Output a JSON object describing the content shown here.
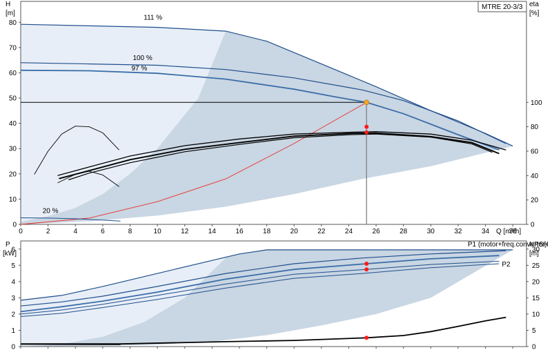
{
  "model": "MTRE 20-3/3",
  "colors": {
    "curve_dark": "#1f4e8c",
    "curve_mid": "#3a6da8",
    "area_dark": "#c9d6e3",
    "area_light": "#e7eef7",
    "system_curve": "#e8302a",
    "marker_red": "#ff1a1a",
    "marker_orange": "#f5a623",
    "black": "#000000"
  },
  "chart_data": [
    {
      "type": "line",
      "name": "head-efficiency",
      "xlabel": "Q [m³/h]",
      "ylabel_left": "H\n[m]",
      "ylabel_right": "eta\n[%]",
      "xlim": [
        0,
        37
      ],
      "ylim": [
        0,
        88
      ],
      "eta_lim": [
        0,
        100
      ],
      "x_ticks": [
        0,
        2,
        4,
        6,
        8,
        10,
        12,
        14,
        16,
        18,
        20,
        22,
        24,
        26,
        28,
        30,
        32,
        34,
        36
      ],
      "y_ticks": [
        0,
        10,
        20,
        30,
        40,
        50,
        60,
        70,
        80
      ],
      "eta_ticks": [
        0,
        20,
        40,
        60,
        80,
        100
      ],
      "speed_labels": [
        {
          "text": "111 %",
          "x": 9,
          "y": 81
        },
        {
          "text": "100 %",
          "x": 8.2,
          "y": 65
        },
        {
          "text": "97 %",
          "x": 8.1,
          "y": 61
        },
        {
          "text": "20 %",
          "x": 1.6,
          "y": 4.5
        }
      ],
      "head_curves": [
        {
          "speed": "111 %",
          "x": [
            0,
            5,
            10,
            15,
            18,
            22,
            26,
            30,
            34,
            36
          ],
          "y": [
            79.2,
            78.6,
            78,
            76.5,
            72.5,
            63.5,
            54.5,
            45,
            36,
            31
          ]
        },
        {
          "speed": "100 %",
          "x": [
            0,
            5,
            10,
            15,
            20,
            25,
            28,
            32,
            35.5
          ],
          "y": [
            64,
            63.5,
            63,
            61.3,
            58,
            53.2,
            49,
            41,
            32
          ]
        },
        {
          "speed": "97 %",
          "x": [
            0,
            5,
            10,
            15,
            20,
            23,
            25.3,
            28,
            32,
            35
          ],
          "y": [
            61,
            60.8,
            59.8,
            57.5,
            53.5,
            50.5,
            48.3,
            43.8,
            35.5,
            29.5
          ]
        },
        {
          "speed": "20 %",
          "x": [
            0,
            2,
            4,
            6,
            7.3
          ],
          "y": [
            2.6,
            2.5,
            2.2,
            1.7,
            1.3
          ]
        }
      ],
      "efficiency_curves": [
        {
          "x": [
            2.7,
            5,
            8,
            12,
            16,
            20,
            24,
            26,
            30,
            33,
            35.5
          ],
          "eta": [
            40,
            47,
            56,
            64.5,
            70,
            74,
            75.5,
            76,
            74,
            69,
            61
          ]
        },
        {
          "x": [
            2.8,
            5,
            8,
            12,
            16,
            20,
            24,
            26,
            30,
            33,
            35
          ],
          "eta": [
            37.5,
            44,
            53,
            61.5,
            67,
            72.3,
            74.5,
            74.8,
            72,
            67,
            58
          ]
        },
        {
          "x": [
            3.5,
            5,
            8,
            12,
            16,
            20,
            24,
            26,
            30,
            33,
            34.5
          ],
          "eta": [
            36.5,
            42,
            50.5,
            59.5,
            65.5,
            71,
            73.5,
            74,
            71.5,
            66,
            59
          ]
        },
        {
          "x": [
            1,
            2,
            3,
            4,
            5,
            6,
            7.2
          ],
          "eta": [
            41,
            60,
            74,
            80.5,
            80,
            75,
            61
          ]
        },
        {
          "x": [
            2.7,
            4,
            5,
            6,
            7.2
          ],
          "eta": [
            34,
            41,
            43.5,
            40.5,
            31
          ]
        }
      ],
      "system_curve": {
        "x": [
          0,
          5,
          10,
          15,
          20,
          25.3
        ],
        "y": [
          0,
          2.5,
          9,
          18,
          32,
          48.3
        ]
      },
      "duty_point": {
        "q": 25.3,
        "h": 48.3,
        "eta": [
          80,
          75.4
        ]
      },
      "area_outer_boundary": {
        "x": [
          0,
          15,
          18,
          22,
          26,
          30,
          34,
          36,
          30,
          25,
          20,
          15,
          10,
          5,
          0
        ],
        "y": [
          79.2,
          76.5,
          72.5,
          63.5,
          54.5,
          45,
          36,
          31,
          23,
          18,
          12,
          7,
          3.5,
          1.2,
          0
        ]
      },
      "area_light_boundary": {
        "x": [
          0,
          5,
          10,
          13,
          15,
          13,
          10,
          8,
          6,
          4,
          2,
          0
        ],
        "y": [
          79.2,
          78.6,
          78,
          77,
          76.5,
          50,
          30,
          20,
          12,
          6.5,
          3.2,
          1
        ]
      }
    },
    {
      "type": "line",
      "name": "power-npsh",
      "xlabel": "",
      "ylabel_left": "P\n[kW]",
      "ylabel_right": "NPSH\n[m]",
      "xlim": [
        0,
        37
      ],
      "ylim": [
        0,
        6.5
      ],
      "npsh_lim": [
        0,
        32.5
      ],
      "y_ticks": [
        0,
        1,
        2,
        3,
        4,
        5,
        6
      ],
      "npsh_ticks": [
        0,
        5,
        10,
        15,
        20,
        25,
        30
      ],
      "series_labels": [
        {
          "text": "P1 (motor+freq.converter)",
          "x": 32.7,
          "y": 6.3
        },
        {
          "text": "P2",
          "x": 35.2,
          "y": 5.07
        }
      ],
      "power_curves": [
        {
          "x": [
            0,
            3,
            6,
            10,
            14,
            16,
            18,
            22,
            26,
            30,
            36
          ],
          "y": [
            2.85,
            3.15,
            3.7,
            4.5,
            5.3,
            5.7,
            5.95,
            5.95,
            5.95,
            5.95,
            5.95
          ]
        },
        {
          "x": [
            0,
            3,
            6,
            10,
            15,
            20,
            25,
            30,
            35.5
          ],
          "y": [
            2.5,
            2.75,
            3.1,
            3.7,
            4.5,
            5.1,
            5.45,
            5.7,
            5.9
          ]
        },
        {
          "x": [
            0,
            3,
            6,
            10,
            15,
            20,
            25.3,
            30,
            35
          ],
          "y": [
            2.15,
            2.45,
            2.8,
            3.35,
            4.15,
            4.75,
            5.1,
            5.4,
            5.6
          ]
        },
        {
          "x": [
            0,
            3,
            6,
            10,
            15,
            20,
            25.3,
            30,
            35
          ],
          "y": [
            2.0,
            2.25,
            2.6,
            3.15,
            3.85,
            4.45,
            4.75,
            5.05,
            5.25
          ]
        },
        {
          "x": [
            0,
            3,
            6,
            10,
            15,
            20,
            25,
            30,
            35
          ],
          "y": [
            1.85,
            2.05,
            2.4,
            2.9,
            3.6,
            4.2,
            4.5,
            4.85,
            5.1
          ]
        }
      ],
      "npsh_curves": [
        {
          "x": [
            0,
            7.3,
            15,
            20,
            25.3,
            28,
            30,
            32,
            34,
            35.5
          ],
          "npsh": [
            0.8,
            0.8,
            1.5,
            1.9,
            2.7,
            3.4,
            4.6,
            6.2,
            7.9,
            9.0
          ]
        },
        {
          "x": [
            0,
            7.3
          ],
          "npsh": [
            0.7,
            0.6
          ]
        }
      ],
      "duty_markers_p": [
        5.1,
        4.75
      ],
      "duty_marker_npsh": 2.7,
      "area_outer_boundary": {
        "x": [
          0,
          3,
          6,
          10,
          14,
          16,
          18,
          22,
          26,
          30,
          36,
          30,
          26,
          22,
          18,
          14,
          10,
          6,
          3,
          0
        ],
        "y": [
          2.85,
          3.15,
          3.7,
          4.5,
          5.3,
          5.7,
          5.95,
          5.95,
          5.95,
          5.95,
          5.95,
          3.0,
          2.0,
          1.3,
          0.7,
          0.3,
          0.12,
          0.05,
          0.02,
          0
        ]
      },
      "area_light_boundary": {
        "x": [
          0,
          3,
          6,
          10,
          14,
          15,
          12,
          9,
          6,
          3,
          0
        ],
        "y": [
          2.85,
          3.15,
          3.7,
          4.5,
          5.3,
          5.45,
          3.0,
          1.5,
          0.6,
          0.15,
          0
        ]
      }
    }
  ]
}
